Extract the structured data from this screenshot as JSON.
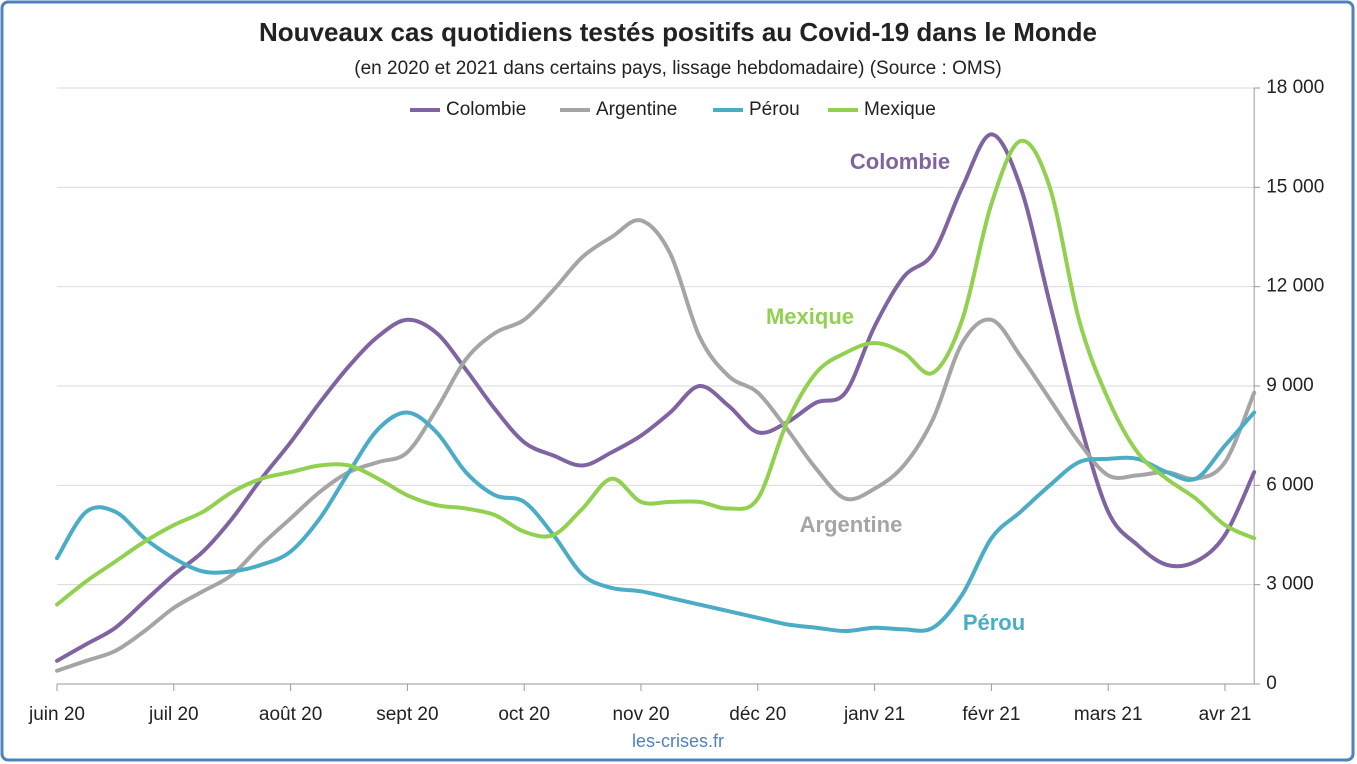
{
  "chart_data": {
    "type": "line",
    "title": "Nouveaux cas quotidiens testés positifs au Covid-19 dans le Monde",
    "subtitle": "(en 2020 et 2021 dans certains pays, lissage hebdomadaire) (Source : OMS)",
    "source": "les-crises.fr",
    "categories": [
      "juin 20",
      null,
      null,
      null,
      "juil 20",
      null,
      null,
      null,
      "août 20",
      null,
      null,
      null,
      "sept 20",
      null,
      null,
      null,
      "oct 20",
      null,
      null,
      null,
      "nov 20",
      null,
      null,
      null,
      "déc 20",
      null,
      null,
      null,
      "janv 21",
      null,
      null,
      null,
      "févr 21",
      null,
      null,
      null,
      "mars 21",
      null,
      null,
      null,
      "avr 21",
      null
    ],
    "series": [
      {
        "name": "Colombie",
        "color": "#8064a2",
        "values": [
          700,
          1200,
          1700,
          2500,
          3300,
          4000,
          5000,
          6200,
          7300,
          8500,
          9600,
          10500,
          11000,
          10600,
          9500,
          8300,
          7300,
          6900,
          6600,
          7000,
          7500,
          8200,
          9000,
          8400,
          7600,
          7900,
          8500,
          8800,
          10800,
          12300,
          13000,
          15000,
          16600,
          15000,
          11500,
          8000,
          5200,
          4200,
          3600,
          3700,
          4500,
          6400
        ]
      },
      {
        "name": "Argentine",
        "color": "#a5a5a5",
        "values": [
          400,
          700,
          1000,
          1600,
          2300,
          2800,
          3300,
          4200,
          5000,
          5800,
          6400,
          6700,
          7000,
          8300,
          9800,
          10600,
          11000,
          11900,
          12900,
          13500,
          14000,
          13000,
          10500,
          9300,
          8800,
          7700,
          6500,
          5600,
          5900,
          6600,
          8000,
          10300,
          11000,
          9900,
          8600,
          7300,
          6300,
          6300,
          6400,
          6200,
          6700,
          8800
        ]
      },
      {
        "name": "Pérou",
        "color": "#4bacc6",
        "values": [
          3800,
          5200,
          5200,
          4400,
          3800,
          3400,
          3400,
          3600,
          4000,
          5000,
          6400,
          7700,
          8200,
          7600,
          6400,
          5700,
          5500,
          4500,
          3300,
          2900,
          2800,
          2600,
          2400,
          2200,
          2000,
          1800,
          1700,
          1600,
          1700,
          1650,
          1700,
          2700,
          4400,
          5200,
          6000,
          6700,
          6800,
          6800,
          6400,
          6200,
          7200,
          8200
        ]
      },
      {
        "name": "Mexique",
        "color": "#92d050",
        "values": [
          2400,
          3100,
          3700,
          4300,
          4800,
          5200,
          5800,
          6200,
          6400,
          6600,
          6600,
          6200,
          5700,
          5400,
          5300,
          5100,
          4600,
          4500,
          5300,
          6200,
          5500,
          5500,
          5500,
          5300,
          5600,
          7900,
          9400,
          10000,
          10300,
          10000,
          9400,
          11000,
          14500,
          16400,
          15000,
          11000,
          8600,
          7000,
          6200,
          5600,
          4800,
          4400
        ]
      }
    ],
    "annotations": [
      {
        "text": "Colombie",
        "series": 0
      },
      {
        "text": "Mexique",
        "series": 3
      },
      {
        "text": "Argentine",
        "series": 1
      },
      {
        "text": "Pérou",
        "series": 2
      }
    ],
    "ylim": [
      0,
      18000
    ],
    "yticks": [
      0,
      {
        "value": 3000,
        "label": "3 000"
      },
      {
        "value": 6000,
        "label": "6 000"
      },
      {
        "value": 9000,
        "label": "9 000"
      },
      {
        "value": 12000,
        "label": "12 000"
      },
      {
        "value": 15000,
        "label": "15 000"
      },
      {
        "value": 18000,
        "label": "18 000"
      }
    ],
    "grid": true,
    "legend": "top"
  }
}
